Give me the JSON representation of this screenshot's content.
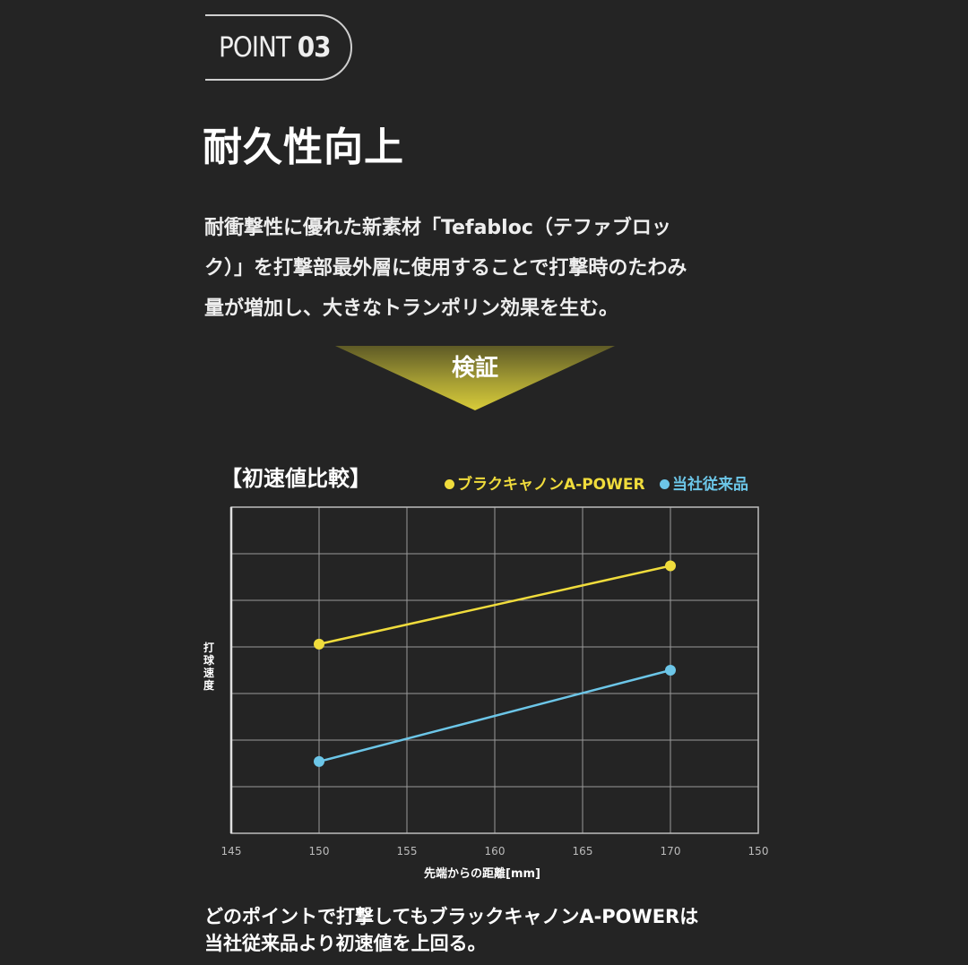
{
  "badge": {
    "point_word": "POINT",
    "point_num": "03"
  },
  "heading": "耐久性向上",
  "body_lines": [
    "耐衝撃性に優れた新素材「Tefabloc（テファブロッ",
    "ク）」を打撃部最外層に使用することで打撃時のたわみ",
    "量が増加し、大きなトランポリン効果を生む。"
  ],
  "verification_label": "検証",
  "colors": {
    "background": "#242424",
    "series_1": "#f0dc3c",
    "series_2": "#6cc6e8",
    "grid": "#bbbbbb"
  },
  "chart_data": {
    "type": "line",
    "title": "【初速値比較】",
    "ylabel": "打球速度",
    "xlabel": "先端からの距離[mm]",
    "x_ticks": [
      "145",
      "150",
      "155",
      "160",
      "165",
      "170",
      "150"
    ],
    "grid": true,
    "legend_position": "top-right",
    "series": [
      {
        "name": "ブラクキャノンA-POWER",
        "x": [
          150,
          170
        ],
        "y": [
          0.58,
          0.82
        ],
        "color": "#f0dc3c"
      },
      {
        "name": "当社従来品",
        "x": [
          150,
          170
        ],
        "y": [
          0.22,
          0.5
        ],
        "color": "#6cc6e8"
      }
    ]
  },
  "footer_lines": [
    "どのポイントで打撃してもブラックキャノンA-POWERは",
    "当社従来品より初速値を上回る。"
  ]
}
